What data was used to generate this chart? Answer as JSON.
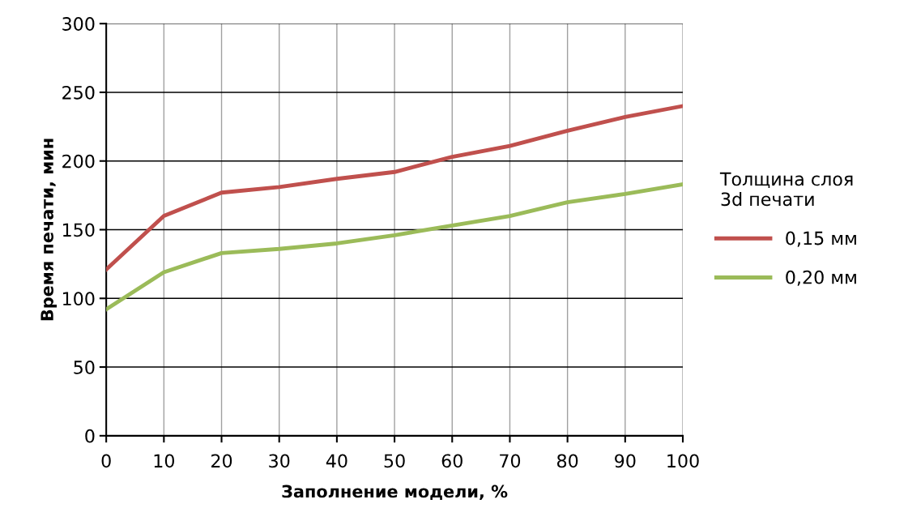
{
  "chart_data": {
    "type": "line",
    "xlabel": "Заполнение модели, %",
    "ylabel": "Время печати, мин",
    "legend_title": "Толщина слоя\n3d печати",
    "x": [
      0,
      10,
      20,
      30,
      40,
      50,
      60,
      70,
      80,
      90,
      100
    ],
    "series": [
      {
        "name": "0,15 мм",
        "color": "#c0504d",
        "values": [
          121,
          160,
          177,
          181,
          187,
          192,
          203,
          211,
          222,
          232,
          240
        ]
      },
      {
        "name": "0,20 мм",
        "color": "#9bbb59",
        "values": [
          92,
          119,
          133,
          136,
          140,
          146,
          153,
          160,
          170,
          176,
          183
        ]
      }
    ],
    "xlim": [
      0,
      100
    ],
    "xticks": [
      0,
      10,
      20,
      30,
      40,
      50,
      60,
      70,
      80,
      90,
      100
    ],
    "ylim": [
      0,
      300
    ],
    "yticks": [
      0,
      50,
      100,
      150,
      200,
      250,
      300
    ],
    "grid": true,
    "legend": "right",
    "marker": "none",
    "line_style": "solid"
  }
}
